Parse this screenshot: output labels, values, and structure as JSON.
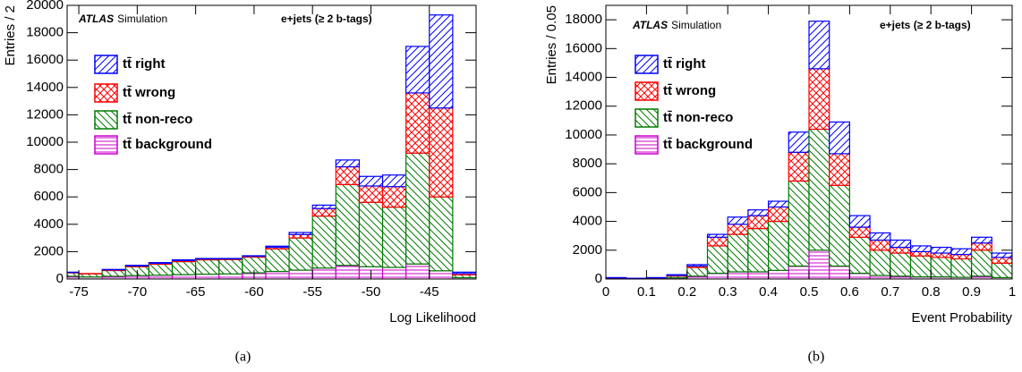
{
  "chart_data": [
    {
      "type": "histogram",
      "stacked": true,
      "caption": "(a)",
      "annotation_bold": "ATLAS",
      "annotation": "Simulation",
      "channel": "e+jets (≥ 2 b-tags)",
      "x_label": "Log Likelihood",
      "y_label": "Entries / 2",
      "bins": [
        -77,
        -75,
        -73,
        -71,
        -69,
        -67,
        -65,
        -63,
        -61,
        -59,
        -57,
        -55,
        -53,
        -51,
        -49,
        -47,
        -45,
        -43,
        -41
      ],
      "xlim": [
        -76,
        -41
      ],
      "xticks": [
        -75,
        -70,
        -65,
        -60,
        -55,
        -50,
        -45
      ],
      "ylim": [
        0,
        20000
      ],
      "yticks": [
        0,
        2000,
        4000,
        6000,
        8000,
        10000,
        12000,
        14000,
        16000,
        18000,
        20000
      ],
      "series": [
        {
          "name": "tt̄ right",
          "color": "#0000ff",
          "hatch": "/",
          "values": [
            20,
            0,
            30,
            40,
            50,
            50,
            40,
            30,
            40,
            80,
            150,
            250,
            500,
            700,
            850,
            3400,
            6800,
            100
          ]
        },
        {
          "name": "tt̄ wrong",
          "color": "#ff0000",
          "hatch": "x",
          "values": [
            30,
            20,
            50,
            60,
            70,
            80,
            60,
            50,
            60,
            120,
            250,
            550,
            1300,
            1200,
            1500,
            4400,
            6500,
            100
          ]
        },
        {
          "name": "tt̄ non-reco",
          "color": "#007a00",
          "hatch": "\\",
          "values": [
            250,
            230,
            420,
            650,
            800,
            950,
            1050,
            1050,
            1150,
            1650,
            2350,
            3800,
            5900,
            4700,
            4400,
            8100,
            5400,
            200
          ]
        },
        {
          "name": "tt̄ background",
          "color": "#cc00cc",
          "hatch": "-",
          "values": [
            200,
            150,
            200,
            250,
            280,
            320,
            350,
            370,
            450,
            550,
            650,
            800,
            1000,
            900,
            850,
            1100,
            600,
            100
          ]
        }
      ]
    },
    {
      "type": "histogram",
      "stacked": true,
      "caption": "(b)",
      "annotation_bold": "ATLAS",
      "annotation": "Simulation",
      "channel": "e+jets (≥ 2 b-tags)",
      "x_label": "Event Probability",
      "y_label": "Entries / 0.05",
      "bins": [
        0,
        0.05,
        0.1,
        0.15,
        0.2,
        0.25,
        0.3,
        0.35,
        0.4,
        0.45,
        0.5,
        0.55,
        0.6,
        0.65,
        0.7,
        0.75,
        0.8,
        0.85,
        0.9,
        0.95,
        1
      ],
      "xlim": [
        0,
        1
      ],
      "xticks": [
        0,
        0.1,
        0.2,
        0.3,
        0.4,
        0.5,
        0.6,
        0.7,
        0.8,
        0.9,
        1
      ],
      "ylim": [
        0,
        19000
      ],
      "yticks": [
        0,
        2000,
        4000,
        6000,
        8000,
        10000,
        12000,
        14000,
        16000,
        18000
      ],
      "series": [
        {
          "name": "tt̄ right",
          "color": "#0000ff",
          "hatch": "/",
          "values": [
            20,
            10,
            20,
            50,
            100,
            200,
            500,
            400,
            400,
            1400,
            3300,
            2200,
            800,
            500,
            500,
            400,
            400,
            400,
            400,
            300
          ]
        },
        {
          "name": "tt̄ wrong",
          "color": "#ff0000",
          "hatch": "x",
          "values": [
            30,
            10,
            20,
            50,
            100,
            600,
            700,
            900,
            1000,
            2000,
            4200,
            2200,
            700,
            700,
            400,
            300,
            300,
            300,
            500,
            400
          ]
        },
        {
          "name": "tt̄ non-reco",
          "color": "#007a00",
          "hatch": "\\",
          "values": [
            30,
            20,
            40,
            120,
            600,
            1900,
            2600,
            3000,
            3400,
            5900,
            8400,
            5600,
            2500,
            1750,
            1600,
            1450,
            1350,
            1280,
            1800,
            1000
          ]
        },
        {
          "name": "tt̄ background",
          "color": "#cc00cc",
          "hatch": "-",
          "values": [
            20,
            10,
            20,
            80,
            200,
            400,
            500,
            500,
            600,
            900,
            2000,
            900,
            400,
            250,
            200,
            150,
            150,
            120,
            200,
            100
          ]
        }
      ]
    }
  ]
}
